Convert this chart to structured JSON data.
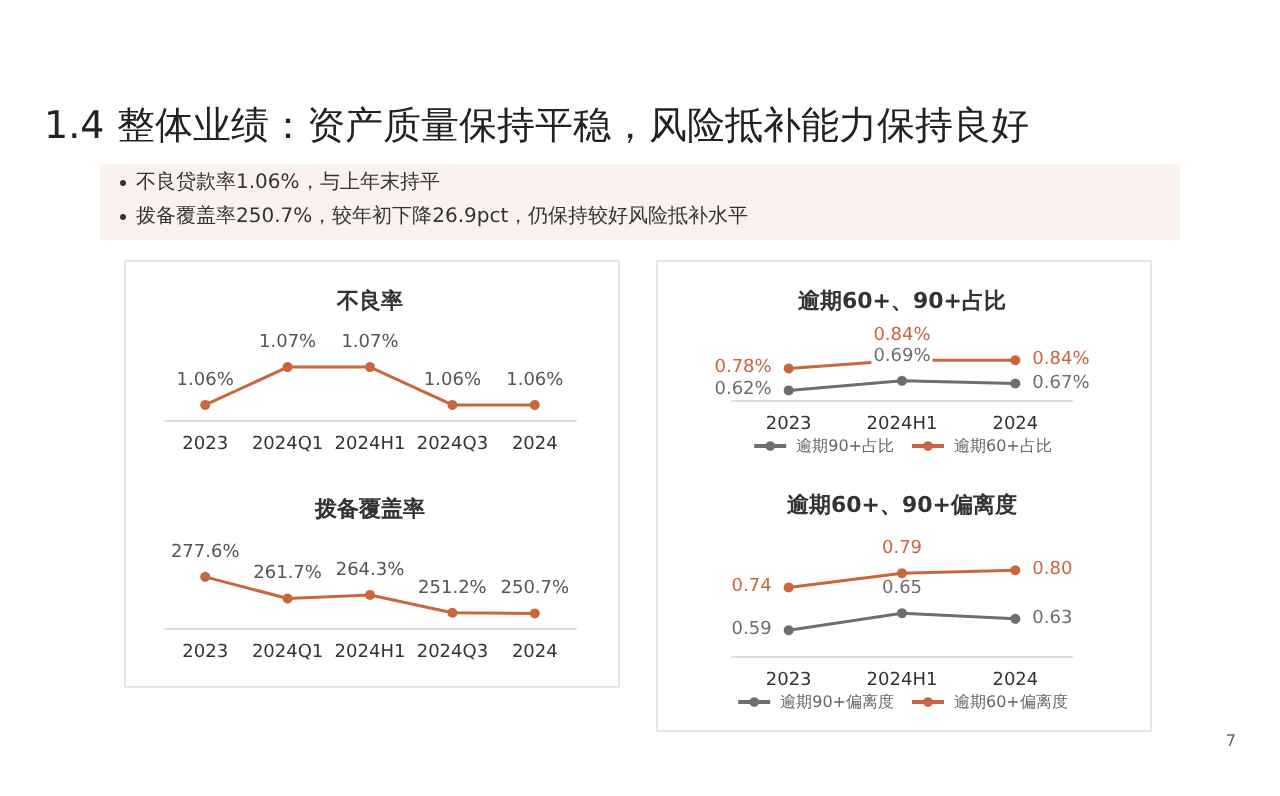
{
  "chart_data": [
    {
      "type": "other",
      "title": "1.4 整体业绩：资产质量保持平稳，风险抵补能力保持良好",
      "annotations": [
        "不良贷款率1.06%，与上年末持平",
        "拨备覆盖率250.7%，较年初下降26.9pct，仍保持较好风险抵补水平",
        "7"
      ]
    },
    {
      "type": "line",
      "title": "不良率",
      "categories": [
        "2023",
        "2024Q1",
        "2024H1",
        "2024Q3",
        "2024"
      ],
      "series": [
        {
          "color": "#c8673e",
          "values": [
            1.06,
            1.07,
            1.07,
            1.06,
            1.06
          ],
          "value_labels": [
            "1.06%",
            "1.07%",
            "1.07%",
            "1.06%",
            "1.06%"
          ]
        }
      ],
      "marker": "circle",
      "tick_labels": "x",
      "grid": false,
      "legend": false
    },
    {
      "type": "line",
      "title": "拨备覆盖率",
      "categories": [
        "2023",
        "2024Q1",
        "2024H1",
        "2024Q3",
        "2024"
      ],
      "series": [
        {
          "color": "#c8673e",
          "values": [
            277.6,
            261.7,
            264.3,
            251.2,
            250.7
          ],
          "value_labels": [
            "277.6%",
            "261.7%",
            "264.3%",
            "251.2%",
            "250.7%"
          ]
        }
      ],
      "marker": "circle",
      "tick_labels": "x",
      "grid": false,
      "legend": false
    },
    {
      "type": "line",
      "title": "逾期60+、90+占比",
      "categories": [
        "2023",
        "2024H1",
        "2024"
      ],
      "series": [
        {
          "name": "逾期90+占比",
          "color": "#6e6e6e",
          "values": [
            0.62,
            0.69,
            0.67
          ],
          "value_labels": [
            "0.62%",
            "0.69%",
            "0.67%"
          ]
        },
        {
          "name": "逾期60+占比",
          "color": "#c8673e",
          "values": [
            0.78,
            0.84,
            0.84
          ],
          "value_labels": [
            "0.78%",
            "0.84%",
            "0.84%"
          ]
        }
      ],
      "marker": "circle",
      "tick_labels": "x",
      "grid": false,
      "legend": "bottom"
    },
    {
      "type": "line",
      "title": "逾期60+、90+偏离度",
      "categories": [
        "2023",
        "2024H1",
        "2024"
      ],
      "series": [
        {
          "name": "逾期90+偏离度",
          "color": "#6e6e6e",
          "values": [
            0.59,
            0.65,
            0.63
          ],
          "value_labels": [
            "0.59",
            "0.65",
            "0.63"
          ]
        },
        {
          "name": "逾期60+偏离度",
          "color": "#c8673e",
          "values": [
            0.74,
            0.79,
            0.8
          ],
          "value_labels": [
            "0.74",
            "0.79",
            "0.80"
          ]
        }
      ],
      "marker": "circle",
      "tick_labels": "x",
      "grid": false,
      "legend": "bottom"
    }
  ]
}
